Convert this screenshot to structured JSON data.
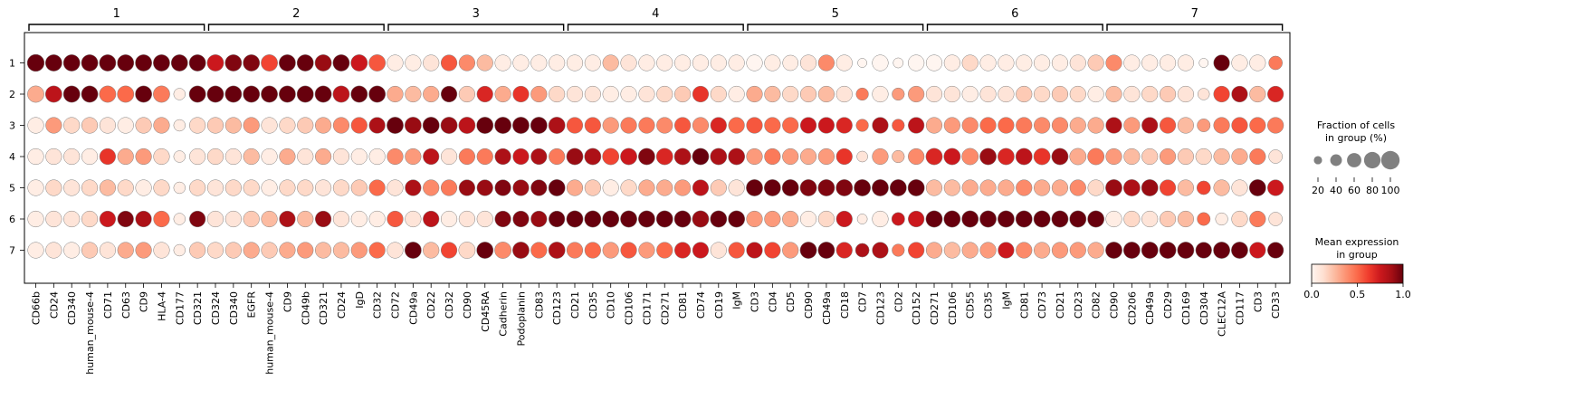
{
  "chart_data": {
    "type": "dotplot",
    "title": "",
    "xlabel": "",
    "ylabel": "",
    "groups": [
      "1",
      "2",
      "3",
      "4",
      "5",
      "6",
      "7"
    ],
    "brackets": [
      {
        "label": "1",
        "genes": [
          "CD66b",
          "CD24",
          "CD340",
          "human_mouse-4",
          "CD71",
          "CD63",
          "CD9",
          "HLA-4",
          "CD177",
          "CD321"
        ]
      },
      {
        "label": "2",
        "genes": [
          "CD324",
          "CD340",
          "EGFR",
          "human_mouse-4",
          "CD9",
          "CD49b",
          "CD321",
          "CD24",
          "IgD",
          "CD32"
        ]
      },
      {
        "label": "3",
        "genes": [
          "CD72",
          "CD49a",
          "CD22",
          "CD32",
          "CD90",
          "CD45RA",
          "Cadherin",
          "Podoplanin",
          "CD83",
          "CD123"
        ]
      },
      {
        "label": "4",
        "genes": [
          "CD21",
          "CD35",
          "CD10",
          "CD106",
          "CD171",
          "CD271",
          "CD81",
          "CD74",
          "CD19",
          "IgM"
        ]
      },
      {
        "label": "5",
        "genes": [
          "CD3",
          "CD4",
          "CD5",
          "CD90",
          "CD49a",
          "CD18",
          "CD7",
          "CD123",
          "CD2",
          "CD152"
        ]
      },
      {
        "label": "6",
        "genes": [
          "CD271",
          "CD106",
          "CD55",
          "CD35",
          "IgM",
          "CD81",
          "CD73",
          "CD21",
          "CD23",
          "CD82"
        ]
      },
      {
        "label": "7",
        "genes": [
          "CD90",
          "CD206",
          "CD49a",
          "CD29",
          "CD169",
          "CD304",
          "CLEC12A",
          "CD117",
          "CD3",
          "CD33"
        ]
      }
    ],
    "fraction": [
      [
        85,
        80,
        80,
        80,
        80,
        80,
        80,
        80,
        80,
        80,
        80,
        80,
        80,
        80,
        80,
        80,
        80,
        80,
        80,
        80,
        75,
        75,
        75,
        75,
        75,
        75,
        75,
        75,
        75,
        75,
        75,
        75,
        75,
        75,
        75,
        75,
        75,
        75,
        75,
        75,
        75,
        75,
        70,
        75,
        75,
        75,
        25,
        75,
        30,
        75,
        75,
        75,
        75,
        75,
        75,
        75,
        75,
        75,
        75,
        75,
        75,
        75,
        75,
        75,
        75,
        25,
        75,
        75,
        75,
        55
      ],
      [
        80,
        80,
        80,
        80,
        80,
        80,
        80,
        80,
        40,
        80,
        80,
        80,
        80,
        80,
        80,
        80,
        80,
        80,
        80,
        80,
        75,
        75,
        75,
        75,
        75,
        75,
        75,
        75,
        75,
        75,
        75,
        75,
        75,
        75,
        75,
        75,
        75,
        75,
        75,
        75,
        75,
        75,
        75,
        75,
        75,
        75,
        45,
        75,
        45,
        75,
        75,
        75,
        75,
        75,
        75,
        75,
        75,
        75,
        75,
        75,
        75,
        75,
        75,
        75,
        75,
        40,
        75,
        75,
        75,
        75
      ],
      [
        75,
        75,
        75,
        75,
        75,
        75,
        75,
        75,
        40,
        75,
        75,
        75,
        75,
        75,
        75,
        75,
        75,
        75,
        75,
        75,
        80,
        80,
        80,
        80,
        80,
        80,
        80,
        80,
        80,
        80,
        75,
        75,
        75,
        75,
        75,
        75,
        75,
        75,
        75,
        75,
        75,
        75,
        75,
        75,
        75,
        75,
        45,
        75,
        45,
        75,
        75,
        75,
        75,
        75,
        75,
        75,
        75,
        75,
        75,
        75,
        75,
        75,
        75,
        75,
        75,
        50,
        75,
        75,
        75,
        75
      ],
      [
        75,
        75,
        75,
        75,
        75,
        75,
        75,
        75,
        40,
        75,
        75,
        75,
        75,
        75,
        75,
        75,
        75,
        75,
        75,
        75,
        75,
        75,
        75,
        75,
        75,
        75,
        75,
        75,
        75,
        75,
        80,
        80,
        80,
        80,
        80,
        80,
        80,
        80,
        80,
        80,
        75,
        75,
        75,
        75,
        75,
        75,
        35,
        75,
        45,
        75,
        80,
        80,
        80,
        80,
        80,
        80,
        80,
        80,
        80,
        80,
        75,
        75,
        75,
        75,
        75,
        75,
        75,
        75,
        75,
        55
      ],
      [
        75,
        75,
        75,
        75,
        75,
        75,
        75,
        75,
        40,
        75,
        75,
        75,
        75,
        75,
        75,
        75,
        75,
        75,
        75,
        75,
        75,
        75,
        75,
        75,
        75,
        75,
        75,
        75,
        75,
        80,
        75,
        75,
        75,
        75,
        75,
        75,
        75,
        75,
        75,
        75,
        80,
        80,
        80,
        80,
        80,
        80,
        80,
        80,
        80,
        80,
        75,
        75,
        75,
        75,
        75,
        75,
        75,
        75,
        75,
        75,
        80,
        80,
        80,
        75,
        75,
        55,
        75,
        75,
        80,
        75
      ],
      [
        75,
        75,
        75,
        75,
        75,
        75,
        75,
        75,
        40,
        75,
        75,
        75,
        75,
        75,
        75,
        75,
        75,
        75,
        75,
        75,
        75,
        75,
        75,
        75,
        75,
        75,
        75,
        75,
        75,
        75,
        80,
        80,
        80,
        80,
        80,
        80,
        80,
        80,
        80,
        80,
        75,
        75,
        75,
        75,
        75,
        75,
        30,
        75,
        50,
        75,
        80,
        80,
        80,
        80,
        80,
        80,
        80,
        80,
        80,
        80,
        75,
        75,
        75,
        75,
        75,
        50,
        45,
        75,
        75,
        55
      ],
      [
        75,
        75,
        75,
        75,
        75,
        75,
        75,
        75,
        40,
        75,
        75,
        75,
        75,
        75,
        75,
        75,
        75,
        75,
        75,
        75,
        75,
        80,
        75,
        75,
        80,
        80,
        80,
        80,
        75,
        80,
        75,
        75,
        75,
        75,
        75,
        75,
        75,
        75,
        75,
        75,
        75,
        75,
        75,
        80,
        80,
        75,
        55,
        75,
        45,
        75,
        75,
        75,
        75,
        75,
        75,
        75,
        75,
        75,
        75,
        75,
        80,
        80,
        80,
        80,
        80,
        75,
        80,
        80,
        75,
        75
      ]
    ],
    "expression": [
      [
        1.0,
        1.0,
        1.0,
        1.0,
        1.0,
        1.0,
        1.0,
        1.0,
        1.0,
        1.0,
        0.75,
        0.95,
        0.95,
        0.6,
        1.0,
        1.0,
        0.9,
        1.0,
        0.75,
        0.55,
        0.05,
        0.05,
        0.1,
        0.55,
        0.4,
        0.25,
        0.05,
        0.05,
        0.05,
        0.05,
        0.05,
        0.05,
        0.25,
        0.1,
        0.05,
        0.05,
        0.05,
        0.05,
        0.05,
        0.05,
        0.0,
        0.05,
        0.05,
        0.1,
        0.4,
        0.05,
        0.0,
        0.0,
        0.0,
        0.0,
        0.0,
        0.05,
        0.15,
        0.05,
        0.05,
        0.05,
        0.05,
        0.05,
        0.1,
        0.2,
        0.4,
        0.05,
        0.05,
        0.05,
        0.05,
        0.0,
        1.0,
        0.05,
        0.05,
        0.45
      ],
      [
        0.3,
        0.8,
        1.0,
        1.0,
        0.5,
        0.5,
        1.0,
        0.45,
        0.05,
        1.0,
        1.0,
        1.0,
        1.0,
        1.0,
        1.0,
        1.0,
        1.0,
        0.8,
        1.0,
        1.0,
        0.3,
        0.25,
        0.3,
        1.0,
        0.2,
        0.7,
        0.3,
        0.65,
        0.35,
        0.15,
        0.1,
        0.1,
        0.05,
        0.05,
        0.1,
        0.15,
        0.2,
        0.65,
        0.15,
        0.05,
        0.3,
        0.25,
        0.15,
        0.2,
        0.25,
        0.1,
        0.45,
        0.05,
        0.35,
        0.35,
        0.1,
        0.1,
        0.05,
        0.1,
        0.1,
        0.2,
        0.15,
        0.2,
        0.15,
        0.05,
        0.25,
        0.1,
        0.15,
        0.2,
        0.1,
        0.1,
        0.6,
        0.85,
        0.25,
        0.7
      ],
      [
        0.05,
        0.35,
        0.15,
        0.2,
        0.1,
        0.05,
        0.2,
        0.3,
        0.05,
        0.15,
        0.2,
        0.25,
        0.35,
        0.1,
        0.15,
        0.2,
        0.3,
        0.4,
        0.55,
        0.85,
        1.0,
        0.9,
        1.0,
        0.9,
        0.8,
        1.0,
        1.0,
        1.0,
        1.0,
        0.85,
        0.55,
        0.55,
        0.35,
        0.45,
        0.45,
        0.4,
        0.55,
        0.4,
        0.7,
        0.5,
        0.55,
        0.5,
        0.5,
        0.75,
        0.75,
        0.7,
        0.5,
        0.85,
        0.55,
        0.8,
        0.3,
        0.35,
        0.4,
        0.5,
        0.5,
        0.45,
        0.4,
        0.4,
        0.3,
        0.3,
        0.85,
        0.35,
        0.85,
        0.55,
        0.25,
        0.35,
        0.45,
        0.55,
        0.5,
        0.45
      ],
      [
        0.05,
        0.1,
        0.1,
        0.05,
        0.65,
        0.3,
        0.35,
        0.15,
        0.05,
        0.1,
        0.15,
        0.1,
        0.25,
        0.05,
        0.3,
        0.1,
        0.3,
        0.1,
        0.05,
        0.05,
        0.4,
        0.35,
        0.8,
        0.1,
        0.45,
        0.45,
        0.85,
        0.75,
        0.85,
        0.45,
        0.9,
        0.85,
        0.6,
        0.75,
        0.95,
        0.7,
        0.85,
        1.0,
        0.85,
        0.85,
        0.35,
        0.45,
        0.35,
        0.3,
        0.35,
        0.65,
        0.1,
        0.35,
        0.25,
        0.4,
        0.7,
        0.75,
        0.4,
        0.9,
        0.7,
        0.8,
        0.65,
        0.9,
        0.3,
        0.45,
        0.35,
        0.25,
        0.2,
        0.35,
        0.2,
        0.15,
        0.25,
        0.3,
        0.45,
        0.1
      ],
      [
        0.05,
        0.15,
        0.1,
        0.15,
        0.25,
        0.15,
        0.05,
        0.15,
        0.05,
        0.15,
        0.1,
        0.15,
        0.15,
        0.05,
        0.15,
        0.15,
        0.1,
        0.15,
        0.2,
        0.5,
        0.1,
        0.85,
        0.4,
        0.45,
        0.9,
        0.9,
        0.95,
        0.9,
        0.95,
        1.0,
        0.3,
        0.2,
        0.05,
        0.15,
        0.3,
        0.3,
        0.35,
        0.8,
        0.2,
        0.1,
        1.0,
        1.0,
        1.0,
        0.95,
        0.95,
        0.95,
        1.0,
        1.0,
        1.0,
        1.0,
        0.25,
        0.25,
        0.3,
        0.3,
        0.3,
        0.4,
        0.3,
        0.3,
        0.4,
        0.15,
        0.9,
        0.85,
        0.9,
        0.6,
        0.25,
        0.6,
        0.25,
        0.1,
        1.0,
        0.75
      ],
      [
        0.05,
        0.1,
        0.1,
        0.15,
        0.75,
        0.95,
        0.85,
        0.5,
        0.05,
        0.95,
        0.1,
        0.1,
        0.2,
        0.25,
        0.85,
        0.25,
        0.9,
        0.1,
        0.05,
        0.05,
        0.55,
        0.1,
        0.8,
        0.05,
        0.1,
        0.1,
        0.95,
        0.95,
        0.9,
        1.0,
        1.0,
        1.0,
        1.0,
        1.0,
        1.0,
        1.0,
        1.0,
        0.9,
        1.0,
        1.0,
        0.35,
        0.35,
        0.3,
        0.05,
        0.15,
        0.75,
        0.05,
        0.05,
        0.75,
        0.75,
        1.0,
        1.0,
        1.0,
        1.0,
        1.0,
        1.0,
        1.0,
        1.0,
        1.0,
        1.0,
        0.05,
        0.15,
        0.1,
        0.2,
        0.25,
        0.5,
        0.05,
        0.15,
        0.45,
        0.1
      ],
      [
        0.05,
        0.1,
        0.05,
        0.2,
        0.1,
        0.3,
        0.35,
        0.1,
        0.05,
        0.2,
        0.15,
        0.2,
        0.3,
        0.2,
        0.3,
        0.35,
        0.25,
        0.25,
        0.35,
        0.5,
        0.1,
        1.0,
        0.25,
        0.6,
        0.15,
        1.0,
        0.4,
        0.9,
        0.5,
        0.85,
        0.45,
        0.5,
        0.35,
        0.55,
        0.35,
        0.5,
        0.7,
        0.75,
        0.1,
        0.55,
        0.8,
        0.6,
        0.35,
        1.0,
        1.0,
        0.7,
        0.85,
        0.85,
        0.45,
        0.6,
        0.3,
        0.25,
        0.3,
        0.35,
        0.75,
        0.4,
        0.3,
        0.35,
        0.35,
        0.3,
        1.0,
        1.0,
        1.0,
        1.0,
        1.0,
        1.0,
        1.0,
        1.0,
        0.75,
        1.0
      ]
    ],
    "size_legend": {
      "title_line1": "Fraction of cells",
      "title_line2": "in group (%)",
      "ticks": [
        "20",
        "40",
        "60",
        "80",
        "100"
      ]
    },
    "color_legend": {
      "title_line1": "Mean expression",
      "title_line2": "in group",
      "ticks": [
        "0.0",
        "0.5",
        "1.0"
      ],
      "colormap": "Reds"
    }
  }
}
